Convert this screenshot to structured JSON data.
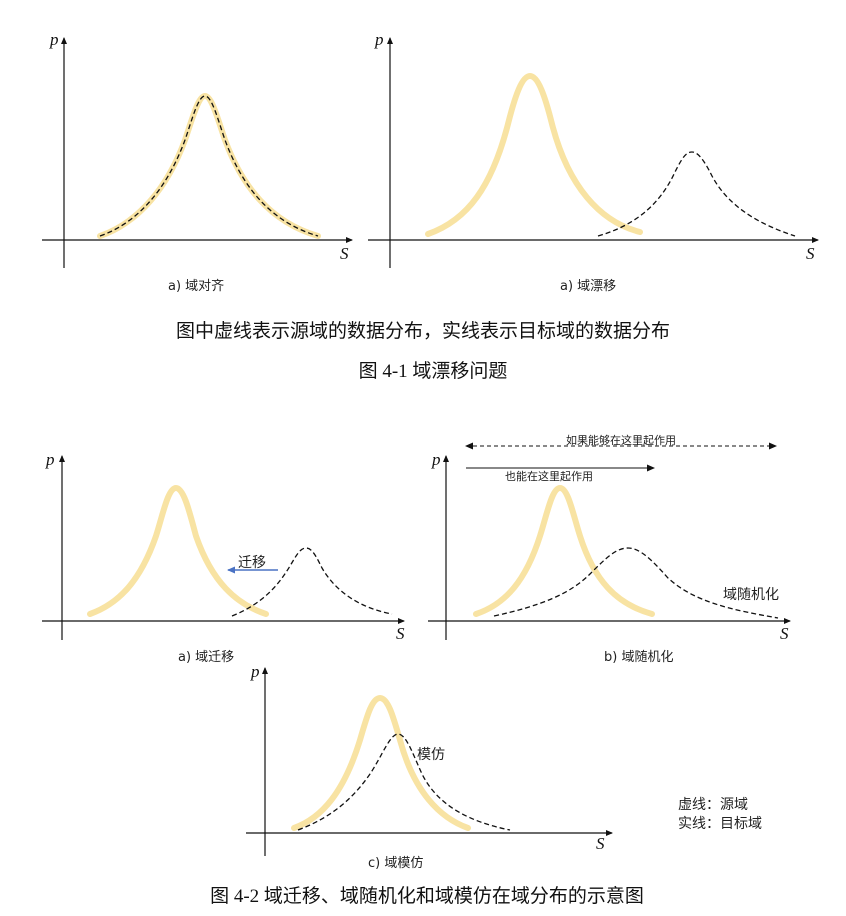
{
  "colors": {
    "source_curve": "#f8e3a3",
    "target_curve": "#111111",
    "axis": "#111111",
    "arrow_blue": "#4a72c4"
  },
  "figure1": {
    "panel_a": {
      "y_label": "p",
      "x_label": "S",
      "caption": "a) 域对齐"
    },
    "panel_b": {
      "y_label": "p",
      "x_label": "S",
      "caption": "a) 域漂移"
    },
    "description": "图中虚线表示源域的数据分布，实线表示目标域的数据分布",
    "title": "图 4-1  域漂移问题"
  },
  "figure2": {
    "panel_a": {
      "y_label": "p",
      "x_label": "S",
      "caption": "a) 域迁移",
      "arrow_label": "迁移"
    },
    "panel_b": {
      "y_label": "p",
      "x_label": "S",
      "caption": "b) 域随机化",
      "wide_label": "如果能够在这里起作用",
      "narrow_label": "也能在这里起作用",
      "curve_label": "域随机化"
    },
    "panel_c": {
      "y_label": "p",
      "x_label": "S",
      "caption": "c) 域模仿",
      "curve_label": "模仿"
    },
    "legend": {
      "dashed": "虚线：源域",
      "solid": "实线：目标域"
    },
    "title": "图 4-2  域迁移、域随机化和域模仿在域分布的示意图"
  }
}
